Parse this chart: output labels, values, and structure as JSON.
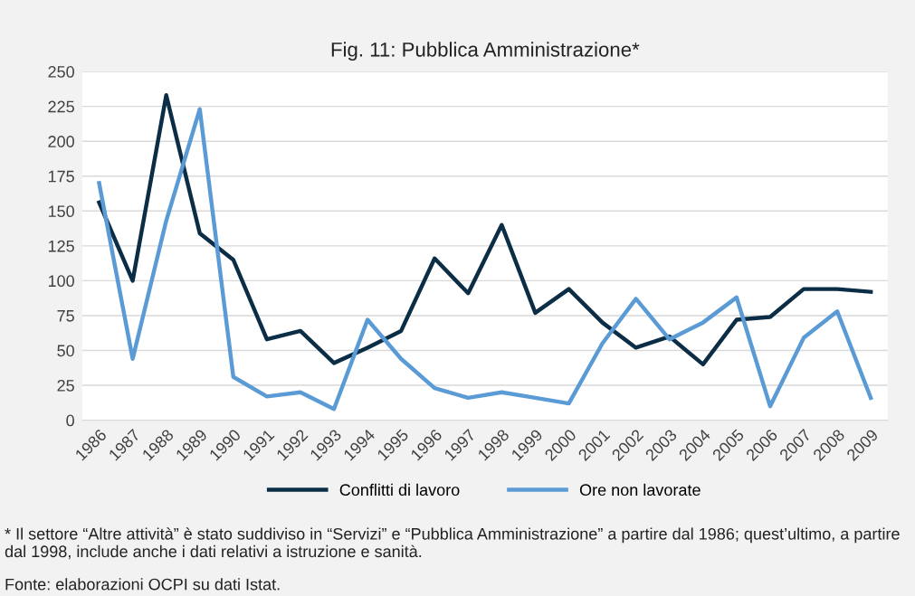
{
  "chart_data": {
    "type": "line",
    "title": "Fig. 11: Pubblica Amministrazione*",
    "categories": [
      "1986",
      "1987",
      "1988",
      "1989",
      "1990",
      "1991",
      "1992",
      "1993",
      "1994",
      "1995",
      "1996",
      "1997",
      "1998",
      "1999",
      "2000",
      "2001",
      "2002",
      "2003",
      "2004",
      "2005",
      "2006",
      "2007",
      "2008",
      "2009"
    ],
    "series": [
      {
        "name": "Conflitti di lavoro",
        "color": "#0b2d45",
        "values": [
          156,
          100,
          233,
          134,
          115,
          58,
          64,
          41,
          52,
          64,
          116,
          91,
          140,
          77,
          94,
          70,
          52,
          60,
          40,
          72,
          74,
          94,
          94,
          92
        ]
      },
      {
        "name": "Ore non lavorate",
        "color": "#5b9bd5",
        "values": [
          170,
          44,
          143,
          223,
          31,
          17,
          20,
          8,
          72,
          44,
          23,
          16,
          20,
          16,
          12,
          55,
          87,
          58,
          70,
          88,
          10,
          59,
          78,
          16
        ]
      }
    ],
    "ylim": [
      0,
      250
    ],
    "yticks": [
      0,
      25,
      50,
      75,
      100,
      125,
      150,
      175,
      200,
      225,
      250
    ],
    "grid": "y",
    "legend": "bottom",
    "marker": "none",
    "line_style": "solid",
    "annotations": [
      "* Il settore “Altre attività” è stato suddiviso in “Servizi” e “Pubblica Amministrazione” a partire dal 1986; quest’ultimo, a partire dal 1998, include anche i dati relativi a istruzione e sanità.",
      "Fonte: elaborazioni OCPI su dati Istat."
    ]
  }
}
